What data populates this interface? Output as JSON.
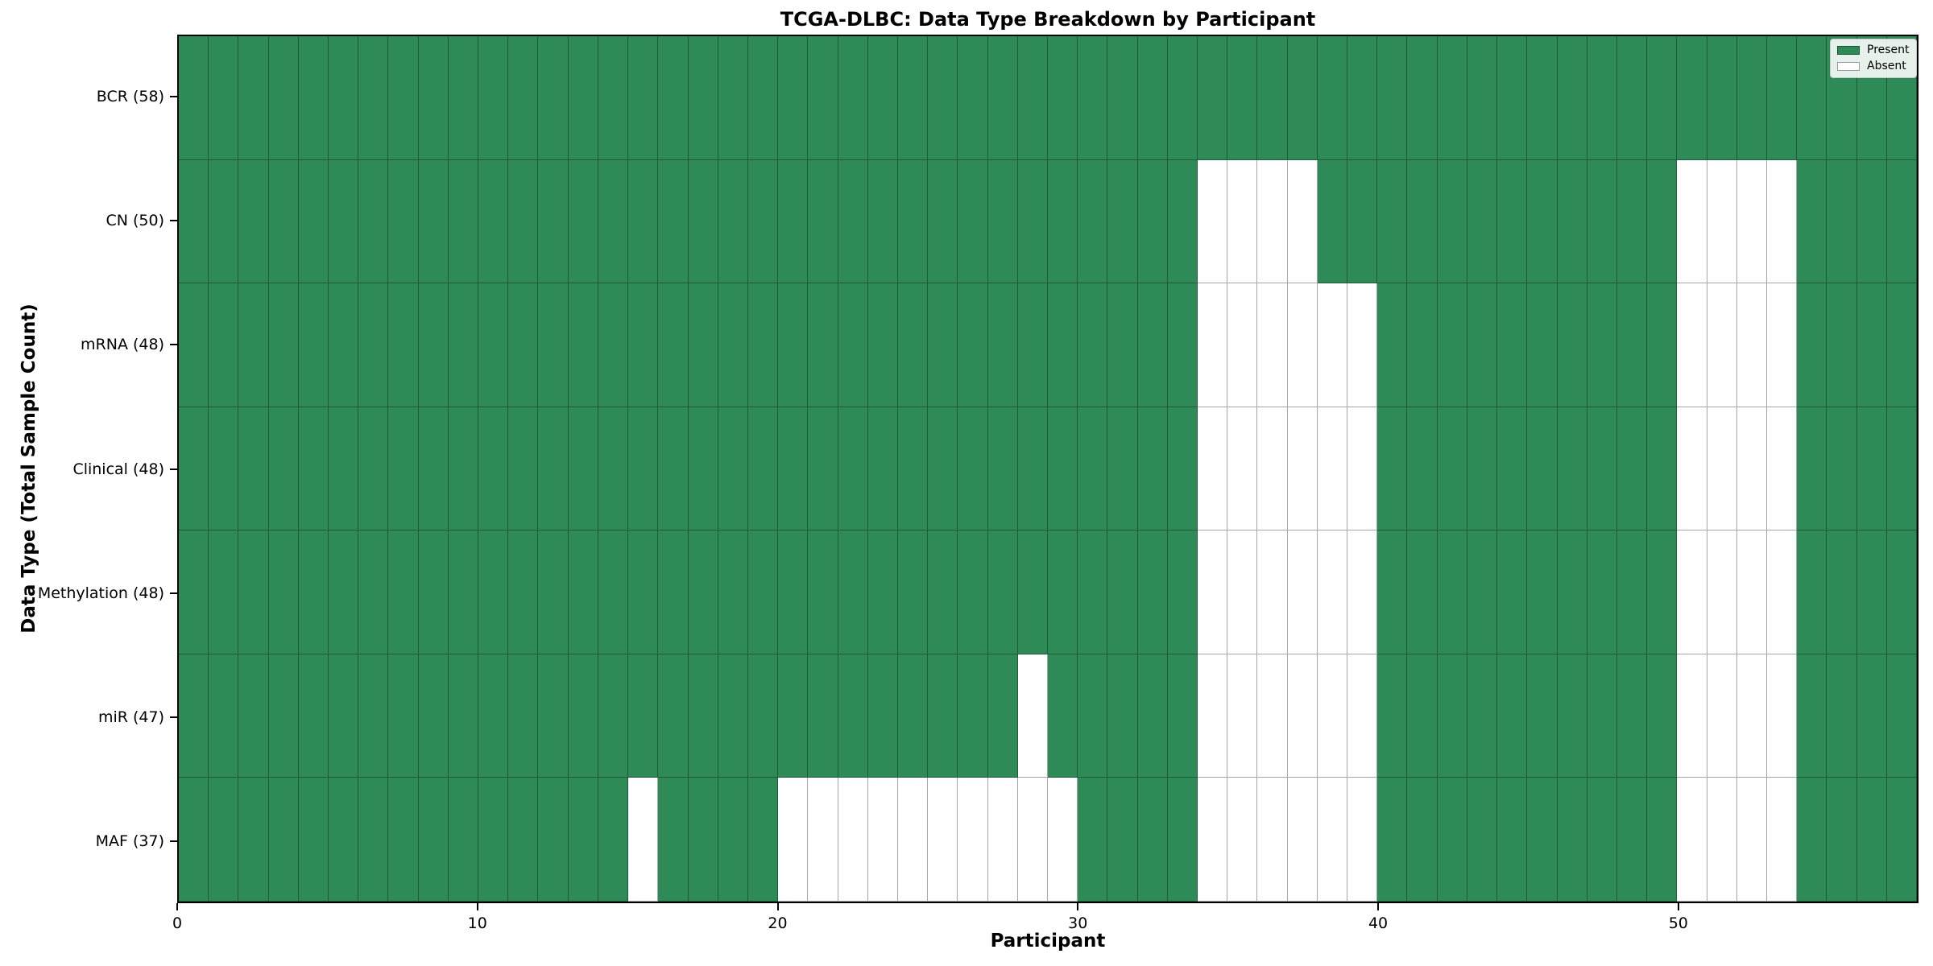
{
  "figure": {
    "title": "TCGA-DLBC: Data Type Breakdown by Participant",
    "xlabel": "Participant",
    "ylabel": "Data Type (Total Sample Count)"
  },
  "legend": {
    "entries": [
      {
        "label": "Present",
        "color": "#2e8b57"
      },
      {
        "label": "Absent",
        "color": "#ffffff"
      }
    ],
    "position": "upper right"
  },
  "chart_data": {
    "type": "heatmap",
    "title": "TCGA-DLBC: Data Type Breakdown by Participant",
    "xlabel": "Participant",
    "ylabel": "Data Type (Total Sample Count)",
    "n_participants": 58,
    "x_range": [
      0,
      58
    ],
    "x_ticks": [
      0,
      10,
      20,
      30,
      40,
      50
    ],
    "grid": true,
    "legend_position": "upper right",
    "colors": {
      "present": "#2e8b57",
      "absent": "#ffffff",
      "cell_edge": "rgba(0,0,0,0.35)"
    },
    "rows": [
      {
        "label": "BCR (58)",
        "data_type": "BCR",
        "total": 58,
        "absent_participants": []
      },
      {
        "label": "CN (50)",
        "data_type": "CN",
        "total": 50,
        "absent_participants": [
          34,
          35,
          36,
          37,
          50,
          51,
          52,
          53
        ]
      },
      {
        "label": "mRNA (48)",
        "data_type": "mRNA",
        "total": 48,
        "absent_participants": [
          34,
          35,
          36,
          37,
          38,
          39,
          50,
          51,
          52,
          53
        ]
      },
      {
        "label": "Clinical (48)",
        "data_type": "Clinical",
        "total": 48,
        "absent_participants": [
          34,
          35,
          36,
          37,
          38,
          39,
          50,
          51,
          52,
          53
        ]
      },
      {
        "label": "Methylation (48)",
        "data_type": "Methylation",
        "total": 48,
        "absent_participants": [
          34,
          35,
          36,
          37,
          38,
          39,
          50,
          51,
          52,
          53
        ]
      },
      {
        "label": "miR (47)",
        "data_type": "miR",
        "total": 47,
        "absent_participants": [
          28,
          34,
          35,
          36,
          37,
          38,
          39,
          50,
          51,
          52,
          53
        ]
      },
      {
        "label": "MAF (37)",
        "data_type": "MAF",
        "total": 37,
        "absent_participants": [
          15,
          20,
          21,
          22,
          23,
          24,
          25,
          26,
          27,
          28,
          29,
          34,
          35,
          36,
          37,
          38,
          39,
          50,
          51,
          52,
          53
        ]
      }
    ]
  }
}
